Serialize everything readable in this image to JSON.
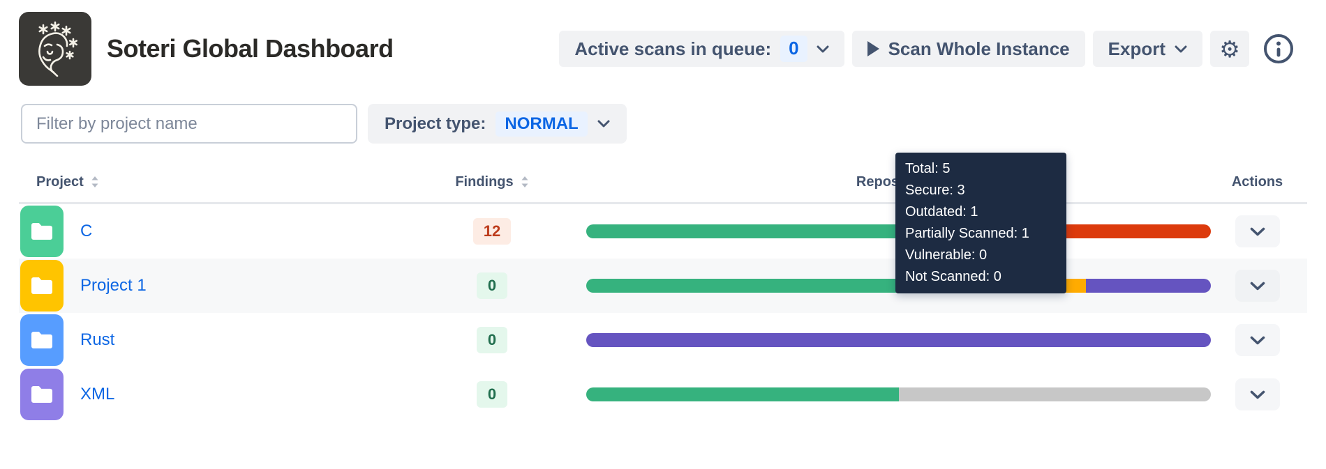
{
  "header": {
    "title": "Soteri Global Dashboard",
    "queue_label": "Active scans in queue:",
    "queue_count": "0",
    "scan_label": "Scan Whole Instance",
    "export_label": "Export"
  },
  "filters": {
    "search_placeholder": "Filter by project name",
    "project_type_label": "Project type:",
    "project_type_value": "NORMAL"
  },
  "table": {
    "headers": {
      "project": "Project",
      "findings": "Findings",
      "repositories": "Repositories",
      "actions": "Actions"
    },
    "status_colors": {
      "secure": "#36B27E",
      "outdated": "#FFAB00",
      "partially_scanned": "#6554C0",
      "vulnerable": "#DC3A0C",
      "not_scanned": "#C7C7C7"
    },
    "rows": [
      {
        "name": "C",
        "avatar_color": "#4BCE97",
        "findings": "12",
        "findings_variant": "danger",
        "hovered": false,
        "segments": [
          {
            "status": "secure",
            "pct": 60
          },
          {
            "status": "vulnerable",
            "pct": 40
          }
        ]
      },
      {
        "name": "Project 1",
        "avatar_color": "#FFC400",
        "findings": "0",
        "findings_variant": "success",
        "hovered": true,
        "segments": [
          {
            "status": "secure",
            "pct": 60
          },
          {
            "status": "outdated",
            "pct": 20
          },
          {
            "status": "partially_scanned",
            "pct": 20
          }
        ]
      },
      {
        "name": "Rust",
        "avatar_color": "#579DFF",
        "findings": "0",
        "findings_variant": "success",
        "hovered": false,
        "segments": [
          {
            "status": "partially_scanned",
            "pct": 100
          }
        ]
      },
      {
        "name": "XML",
        "avatar_color": "#8F7EE7",
        "findings": "0",
        "findings_variant": "success",
        "hovered": false,
        "segments": [
          {
            "status": "secure",
            "pct": 50
          },
          {
            "status": "not_scanned",
            "pct": 50
          }
        ]
      }
    ]
  },
  "tooltip": {
    "entries": [
      {
        "label": "Total",
        "value": "5"
      },
      {
        "label": "Secure",
        "value": "3"
      },
      {
        "label": "Outdated",
        "value": "1"
      },
      {
        "label": "Partially Scanned",
        "value": "1"
      },
      {
        "label": "Vulnerable",
        "value": "0"
      },
      {
        "label": "Not Scanned",
        "value": "0"
      }
    ]
  },
  "colors": {
    "accent_blue": "#0C66E4",
    "badge_blue_bg": "#E9F2FF",
    "danger_text": "#BD3B1B",
    "danger_bg": "#FDECE4",
    "success_text": "#216E4E",
    "success_bg": "#E4F7EC",
    "tooltip_bg": "#1D2B42",
    "button_bg": "#F1F2F4",
    "button_text": "#44546F"
  }
}
